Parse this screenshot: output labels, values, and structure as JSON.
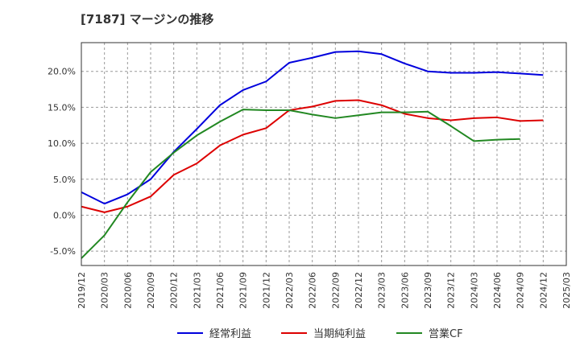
{
  "chart_data": {
    "type": "line",
    "title": "[7187]  マージンの推移",
    "x": [
      "2019/12",
      "2020/03",
      "2020/06",
      "2020/09",
      "2020/12",
      "2021/03",
      "2021/06",
      "2021/09",
      "2021/12",
      "2022/03",
      "2022/06",
      "2022/09",
      "2022/12",
      "2023/03",
      "2023/06",
      "2023/09",
      "2023/12",
      "2024/03",
      "2024/06",
      "2024/09",
      "2024/12",
      "2025/03"
    ],
    "y_ticks": [
      "-5.0%",
      "0.0%",
      "5.0%",
      "10.0%",
      "15.0%",
      "20.0%"
    ],
    "ylim": [
      -7.0,
      24.0
    ],
    "grid": true,
    "legend_position": "bottom",
    "series": [
      {
        "name": "経常利益",
        "color": "#0000dd",
        "values": [
          3.2,
          1.6,
          2.9,
          5.0,
          8.8,
          12.0,
          15.3,
          17.4,
          18.6,
          21.2,
          21.9,
          22.7,
          22.8,
          22.4,
          21.1,
          20.0,
          19.8,
          19.8,
          19.9,
          19.7,
          19.5,
          null
        ]
      },
      {
        "name": "当期純利益",
        "color": "#dd0000",
        "values": [
          1.2,
          0.4,
          1.2,
          2.6,
          5.6,
          7.2,
          9.7,
          11.2,
          12.1,
          14.6,
          15.1,
          15.9,
          16.0,
          15.3,
          14.1,
          13.5,
          13.2,
          13.5,
          13.6,
          13.1,
          13.2,
          null
        ]
      },
      {
        "name": "営業CF",
        "color": "#228822",
        "values": [
          -6.0,
          -2.8,
          1.8,
          6.0,
          8.7,
          11.1,
          13.0,
          14.7,
          14.6,
          14.6,
          14.0,
          13.5,
          13.9,
          14.3,
          14.3,
          14.4,
          12.4,
          10.3,
          10.5,
          10.6,
          null,
          null
        ]
      }
    ]
  }
}
